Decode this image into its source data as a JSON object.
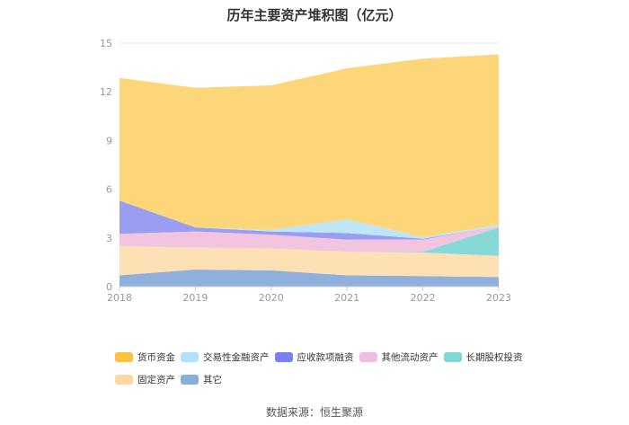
{
  "chart_data": {
    "type": "area",
    "stacked": true,
    "title": "历年主要资产堆积图（亿元）",
    "x": [
      "2018",
      "2019",
      "2020",
      "2021",
      "2022",
      "2023"
    ],
    "ylim": [
      0,
      15
    ],
    "yticks": [
      "0",
      "3",
      "6",
      "9",
      "12",
      "15"
    ],
    "grid": true,
    "legend_position": "bottom",
    "series": [
      {
        "name": "其它",
        "color": "#8fb0dc",
        "values": [
          0.7,
          1.05,
          1.0,
          0.7,
          0.65,
          0.6
        ]
      },
      {
        "name": "固定资产",
        "color": "#fde0b4",
        "values": [
          1.8,
          1.35,
          1.35,
          1.45,
          1.45,
          1.3
        ]
      },
      {
        "name": "长期股权投资",
        "color": "#86d9d7",
        "values": [
          0.0,
          0.0,
          0.0,
          0.0,
          0.05,
          1.75
        ]
      },
      {
        "name": "其他流动资产",
        "color": "#f2c4e0",
        "values": [
          0.75,
          1.0,
          0.85,
          0.75,
          0.75,
          0.05
        ]
      },
      {
        "name": "应收款项融资",
        "color": "#9a9ef2",
        "values": [
          2.05,
          0.25,
          0.2,
          0.4,
          0.05,
          0.0
        ]
      },
      {
        "name": "交易性金融资产",
        "color": "#bfe6f8",
        "values": [
          0.0,
          0.0,
          0.1,
          0.85,
          0.1,
          0.1
        ]
      },
      {
        "name": "货币资金",
        "color": "#fdd67a",
        "values": [
          7.55,
          8.6,
          8.9,
          9.3,
          11.0,
          10.5
        ]
      }
    ]
  },
  "legend": [
    {
      "label": "货币资金",
      "color": "#fbc23e"
    },
    {
      "label": "交易性金融资产",
      "color": "#aee2fa"
    },
    {
      "label": "应收款项融资",
      "color": "#7a7ff2"
    },
    {
      "label": "其他流动资产",
      "color": "#efbde0"
    },
    {
      "label": "长期股权投资",
      "color": "#7fd8d6"
    },
    {
      "label": "固定资产",
      "color": "#fdd6a0"
    },
    {
      "label": "其它",
      "color": "#8aaedb"
    }
  ],
  "source": "数据来源：恒生聚源"
}
